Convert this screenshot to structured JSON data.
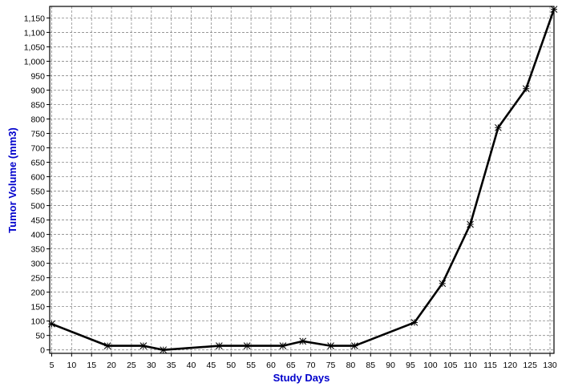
{
  "chart_data": {
    "type": "line",
    "title": "",
    "xlabel": "Study Days",
    "ylabel": "Tumor Volume (mm3)",
    "xlim": [
      4.5,
      131
    ],
    "ylim": [
      -12,
      1190
    ],
    "x_ticks": [
      5,
      10,
      15,
      20,
      25,
      30,
      35,
      40,
      45,
      50,
      55,
      60,
      65,
      70,
      75,
      80,
      85,
      90,
      95,
      100,
      105,
      110,
      115,
      120,
      125,
      130
    ],
    "y_ticks": [
      0,
      50,
      100,
      150,
      200,
      250,
      300,
      350,
      400,
      450,
      500,
      550,
      600,
      650,
      700,
      750,
      800,
      850,
      900,
      950,
      1000,
      1050,
      1100,
      1150
    ],
    "y_tick_labels": [
      "0",
      "50",
      "100",
      "150",
      "200",
      "250",
      "300",
      "350",
      "400",
      "450",
      "500",
      "550",
      "600",
      "650",
      "700",
      "750",
      "800",
      "850",
      "900",
      "950",
      "1,000",
      "1,050",
      "1,100",
      "1,150"
    ],
    "grid": true,
    "legend": "none",
    "series": [
      {
        "x": [
          5,
          19,
          28,
          33,
          47,
          54,
          63,
          68,
          75,
          81,
          96,
          103,
          110,
          117,
          124,
          131
        ],
        "y": [
          90,
          14,
          14,
          0,
          14,
          14,
          14,
          30,
          14,
          14,
          95,
          230,
          435,
          770,
          905,
          1180
        ],
        "color": "#000000",
        "marker": "asterisk"
      }
    ]
  }
}
